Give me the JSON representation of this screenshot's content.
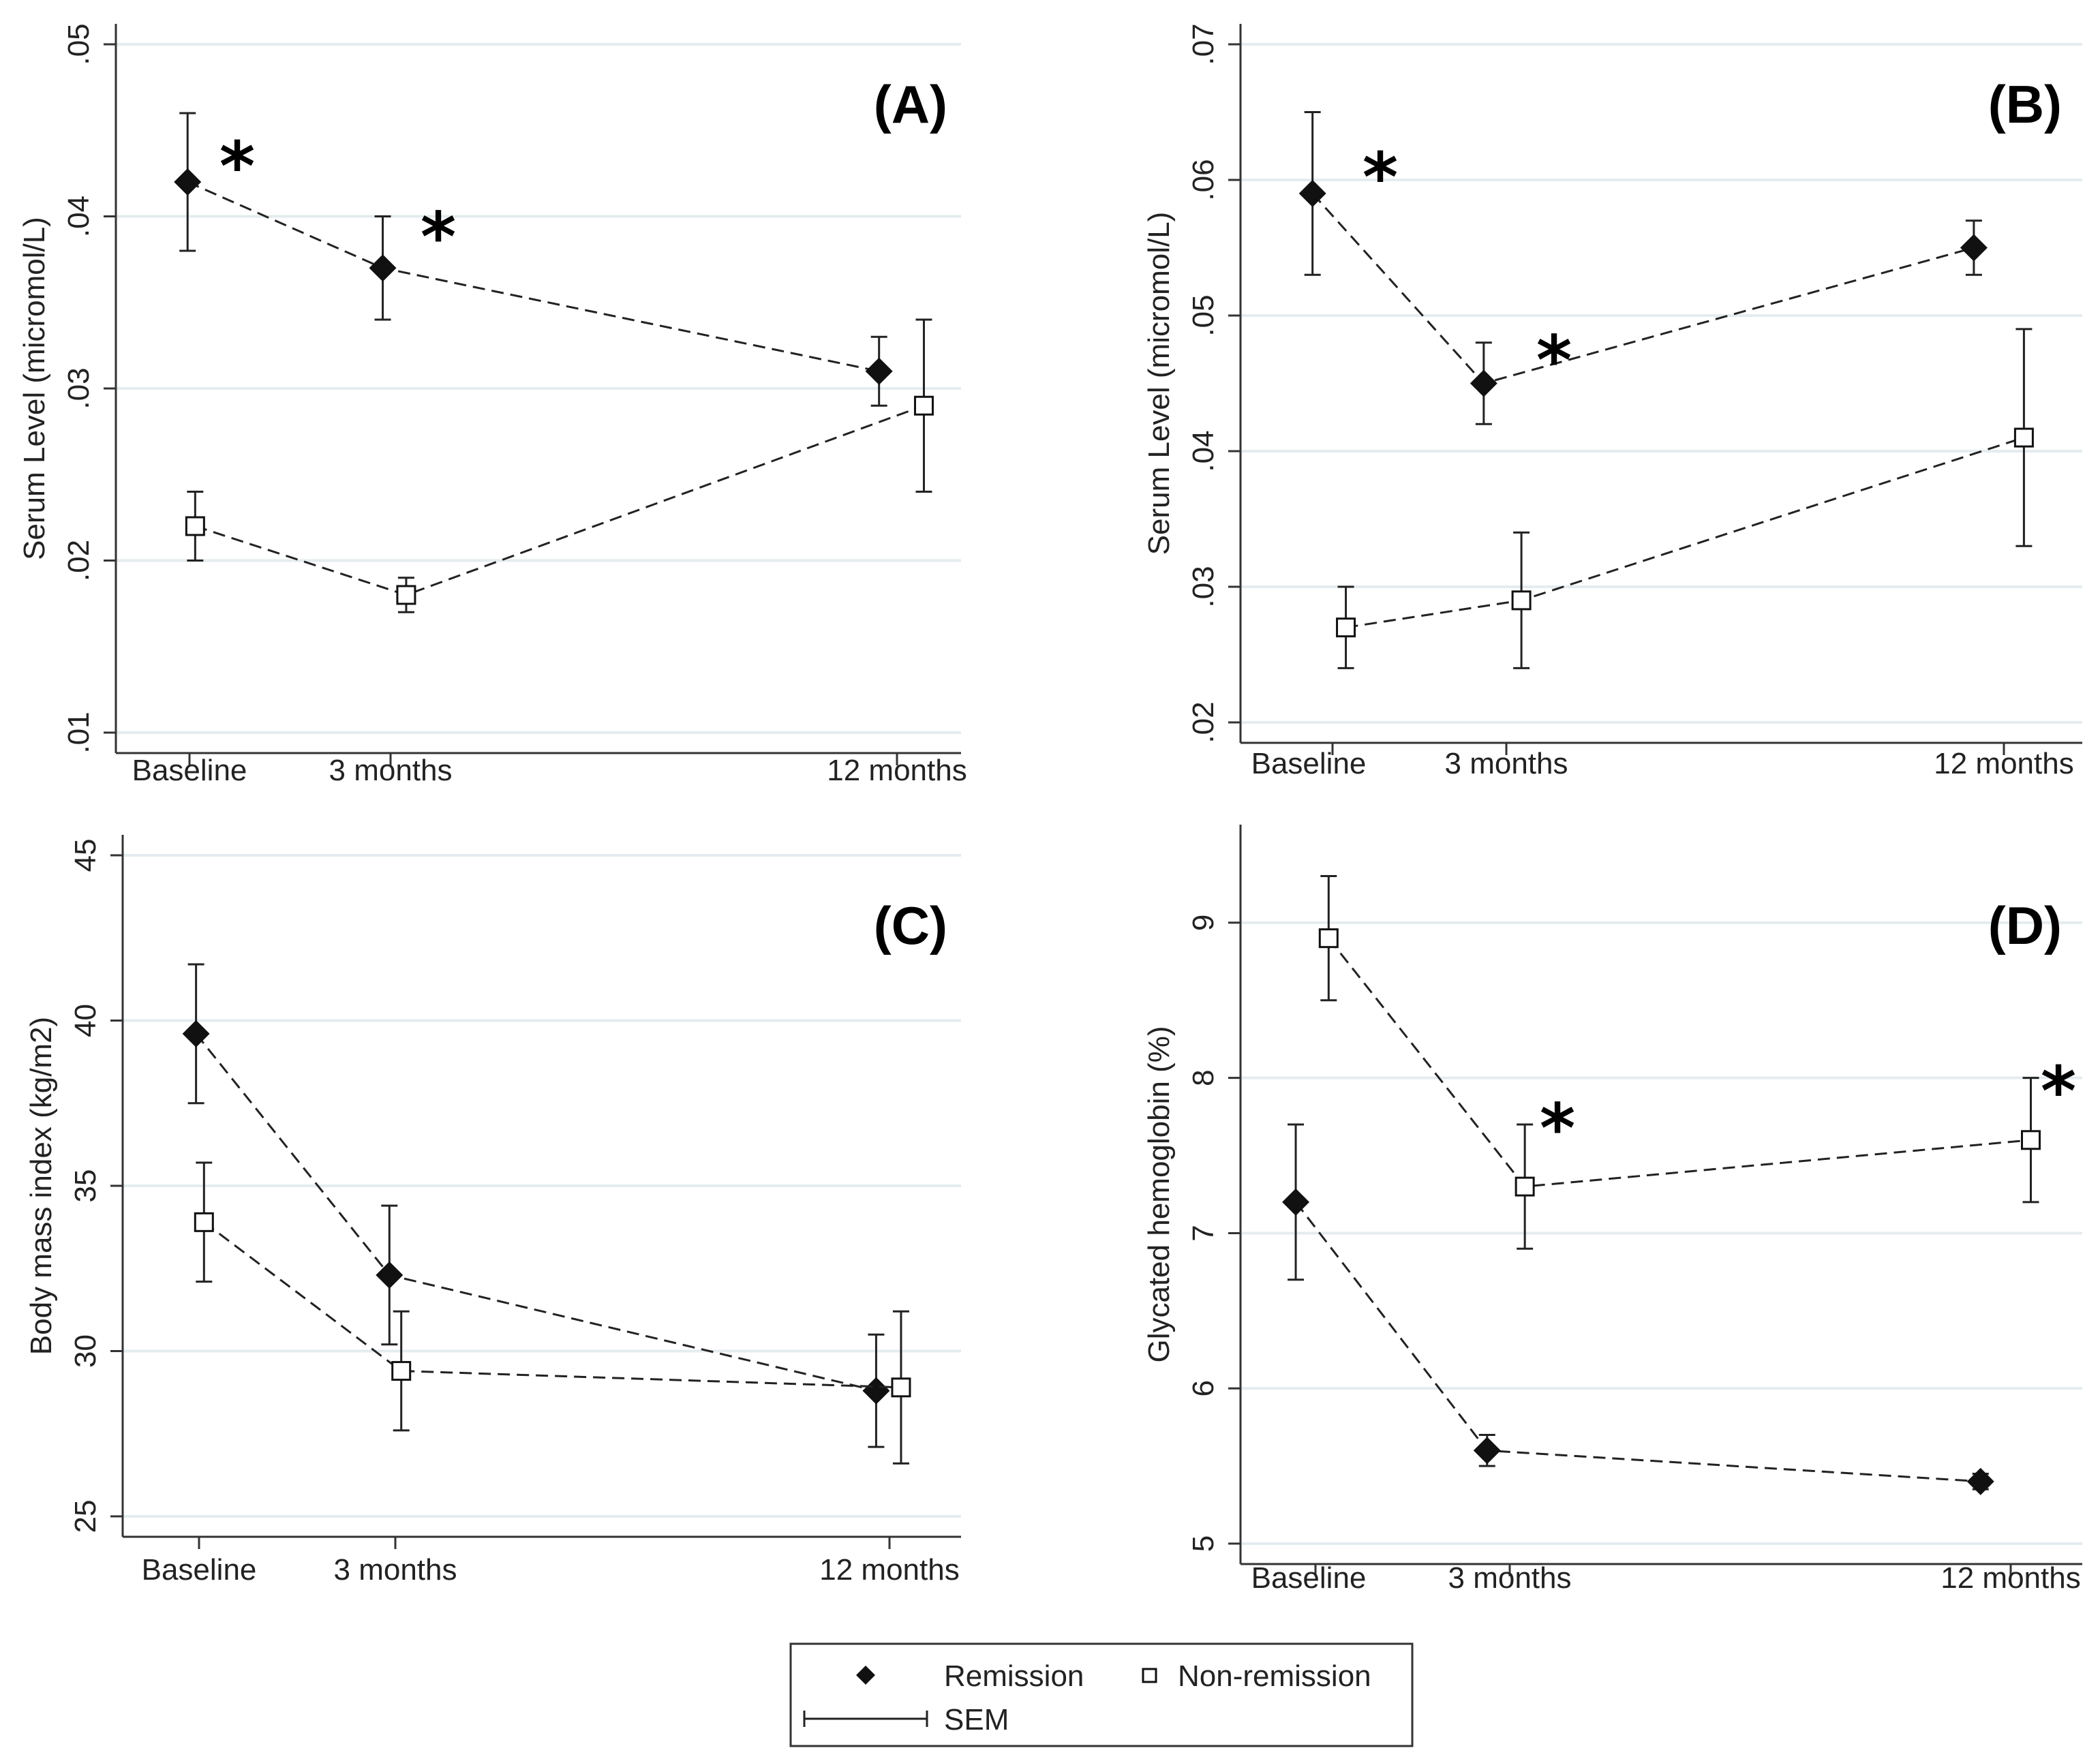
{
  "chart_data": [
    {
      "type": "line",
      "panel_label": "(A)",
      "ylabel": "Serum Level (micromol/L)",
      "categories": [
        "Baseline",
        "3 months",
        "12 months"
      ],
      "x": [
        0,
        3,
        12
      ],
      "ylim": [
        0.01,
        0.05
      ],
      "yticks": [
        0.01,
        0.02,
        0.03,
        0.04,
        0.05
      ],
      "ytick_labels": [
        ".01",
        ".02",
        ".03",
        ".04",
        ".05"
      ],
      "grid": true,
      "series": [
        {
          "name": "Remission",
          "marker": "diamond",
          "values": [
            0.042,
            0.037,
            0.031
          ],
          "err_low": [
            0.038,
            0.034,
            0.029
          ],
          "err_high": [
            0.046,
            0.04,
            0.033
          ]
        },
        {
          "name": "Non-remission",
          "marker": "square",
          "values": [
            0.022,
            0.018,
            0.029
          ],
          "err_low": [
            0.02,
            0.017,
            0.024
          ],
          "err_high": [
            0.024,
            0.019,
            0.034
          ]
        }
      ],
      "annotations": [
        {
          "text": "*",
          "x": 0,
          "y": 0.0433
        },
        {
          "text": "*",
          "x": 3,
          "y": 0.0392
        }
      ]
    },
    {
      "type": "line",
      "panel_label": "(B)",
      "ylabel": "Serum Level (micromol/L)",
      "categories": [
        "Baseline",
        "3 months",
        "12 months"
      ],
      "x": [
        0,
        3,
        12
      ],
      "ylim": [
        0.02,
        0.07
      ],
      "yticks": [
        0.02,
        0.03,
        0.04,
        0.05,
        0.06,
        0.07
      ],
      "ytick_labels": [
        ".02",
        ".03",
        ".04",
        ".05",
        ".06",
        ".07"
      ],
      "grid": true,
      "series": [
        {
          "name": "Remission",
          "marker": "diamond",
          "values": [
            0.059,
            0.045,
            0.055
          ],
          "err_low": [
            0.053,
            0.042,
            0.053
          ],
          "err_high": [
            0.065,
            0.048,
            0.057
          ]
        },
        {
          "name": "Non-remission",
          "marker": "square",
          "values": [
            0.027,
            0.029,
            0.041
          ],
          "err_low": [
            0.024,
            0.024,
            0.033
          ],
          "err_high": [
            0.03,
            0.034,
            0.049
          ]
        }
      ],
      "annotations": [
        {
          "text": "*",
          "x": 0,
          "y": 0.0607
        },
        {
          "text": "*",
          "x": 3,
          "y": 0.0472
        }
      ]
    },
    {
      "type": "line",
      "panel_label": "(C)",
      "ylabel": "Body mass index (kg/m2)",
      "categories": [
        "Baseline",
        "3 months",
        "12 months"
      ],
      "x": [
        0,
        3,
        12
      ],
      "ylim": [
        25,
        45
      ],
      "yticks": [
        25,
        30,
        35,
        40,
        45
      ],
      "ytick_labels": [
        "25",
        "30",
        "35",
        "40",
        "45"
      ],
      "grid": true,
      "series": [
        {
          "name": "Remission",
          "marker": "diamond",
          "values": [
            39.6,
            32.3,
            28.8
          ],
          "err_low": [
            37.5,
            30.2,
            27.1
          ],
          "err_high": [
            41.7,
            34.4,
            30.5
          ]
        },
        {
          "name": "Non-remission",
          "marker": "square",
          "values": [
            33.9,
            29.4,
            28.9
          ],
          "err_low": [
            32.1,
            27.6,
            26.6
          ],
          "err_high": [
            35.7,
            31.2,
            31.2
          ]
        }
      ],
      "annotations": []
    },
    {
      "type": "line",
      "panel_label": "(D)",
      "ylabel": "Glycated hemoglobin (%)",
      "categories": [
        "Baseline",
        "3 months",
        "12 months"
      ],
      "x": [
        0,
        3,
        12
      ],
      "ylim": [
        5,
        9.5
      ],
      "yticks": [
        5,
        6,
        7,
        8,
        9
      ],
      "ytick_labels": [
        "5",
        "6",
        "7",
        "8",
        "9"
      ],
      "grid": true,
      "series": [
        {
          "name": "Remission",
          "marker": "diamond",
          "values": [
            7.2,
            5.6,
            5.4
          ],
          "err_low": [
            6.7,
            5.5,
            5.35
          ],
          "err_high": [
            7.7,
            5.7,
            5.45
          ]
        },
        {
          "name": "Non-remission",
          "marker": "square",
          "values": [
            8.9,
            7.3,
            7.6
          ],
          "err_low": [
            8.5,
            6.9,
            7.2
          ],
          "err_high": [
            9.3,
            7.7,
            8.0
          ]
        }
      ],
      "annotations": [
        {
          "text": "*",
          "x": 3,
          "y": 7.72
        },
        {
          "text": "*",
          "x": 12,
          "y": 7.96
        }
      ]
    }
  ],
  "legend": {
    "placement": "bottom-center",
    "remission_label": "Remission",
    "nonremission_label": "Non-remission",
    "sem_label": "SEM"
  }
}
